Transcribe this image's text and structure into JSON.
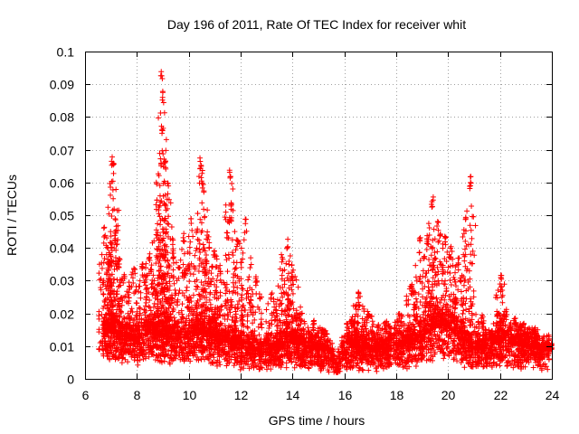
{
  "chart_data": {
    "type": "scatter",
    "title": "Day 196 of 2011, Rate Of TEC Index for receiver whit",
    "xlabel": "GPS time / hours",
    "ylabel": "ROTI / TECUs",
    "xlim": [
      6,
      24
    ],
    "ylim": [
      0,
      0.1
    ],
    "xticks": [
      "6",
      "8",
      "10",
      "12",
      "14",
      "16",
      "18",
      "20",
      "22",
      "24"
    ],
    "yticks": [
      "0",
      "0.01",
      "0.02",
      "0.03",
      "0.04",
      "0.05",
      "0.06",
      "0.07",
      "0.08",
      "0.09",
      "0.1"
    ],
    "grid": true,
    "marker": "+",
    "color": "#ff0000",
    "series": [
      {
        "name": "ROTI",
        "base_trend": [
          [
            6.7,
            0.013
          ],
          [
            7.0,
            0.015
          ],
          [
            7.5,
            0.013
          ],
          [
            8.0,
            0.012
          ],
          [
            8.5,
            0.014
          ],
          [
            9.0,
            0.013
          ],
          [
            9.5,
            0.012
          ],
          [
            10.0,
            0.013
          ],
          [
            10.5,
            0.014
          ],
          [
            11.0,
            0.012
          ],
          [
            11.5,
            0.011
          ],
          [
            12.0,
            0.01
          ],
          [
            12.5,
            0.009
          ],
          [
            13.0,
            0.009
          ],
          [
            13.5,
            0.01
          ],
          [
            14.0,
            0.011
          ],
          [
            14.5,
            0.01
          ],
          [
            15.0,
            0.009
          ],
          [
            15.5,
            0.008
          ],
          [
            15.7,
            0.004
          ],
          [
            15.9,
            0.009
          ],
          [
            16.5,
            0.01
          ],
          [
            17.0,
            0.009
          ],
          [
            17.5,
            0.008
          ],
          [
            18.0,
            0.01
          ],
          [
            18.5,
            0.011
          ],
          [
            19.0,
            0.013
          ],
          [
            19.5,
            0.016
          ],
          [
            20.0,
            0.016
          ],
          [
            20.5,
            0.012
          ],
          [
            21.0,
            0.009
          ],
          [
            21.5,
            0.01
          ],
          [
            22.0,
            0.012
          ],
          [
            22.5,
            0.011
          ],
          [
            23.0,
            0.01
          ],
          [
            23.5,
            0.009
          ],
          [
            23.9,
            0.009
          ]
        ],
        "peaks": [
          [
            6.75,
            0.047
          ],
          [
            6.9,
            0.037
          ],
          [
            7.05,
            0.069
          ],
          [
            7.1,
            0.066
          ],
          [
            7.15,
            0.046
          ],
          [
            7.5,
            0.033
          ],
          [
            7.9,
            0.035
          ],
          [
            8.2,
            0.038
          ],
          [
            8.5,
            0.04
          ],
          [
            8.75,
            0.055
          ],
          [
            8.95,
            0.094
          ],
          [
            9.0,
            0.089
          ],
          [
            8.97,
            0.078
          ],
          [
            9.1,
            0.068
          ],
          [
            9.2,
            0.06
          ],
          [
            9.4,
            0.04
          ],
          [
            9.8,
            0.045
          ],
          [
            10.1,
            0.049
          ],
          [
            10.45,
            0.068
          ],
          [
            10.5,
            0.065
          ],
          [
            10.7,
            0.046
          ],
          [
            11.0,
            0.04
          ],
          [
            11.2,
            0.035
          ],
          [
            11.6,
            0.065
          ],
          [
            11.65,
            0.055
          ],
          [
            11.9,
            0.045
          ],
          [
            12.2,
            0.049
          ],
          [
            12.6,
            0.032
          ],
          [
            13.2,
            0.028
          ],
          [
            13.6,
            0.038
          ],
          [
            13.8,
            0.043
          ],
          [
            14.0,
            0.035
          ],
          [
            14.3,
            0.022
          ],
          [
            14.8,
            0.018
          ],
          [
            15.2,
            0.017
          ],
          [
            16.3,
            0.02
          ],
          [
            16.55,
            0.027
          ],
          [
            16.9,
            0.022
          ],
          [
            17.3,
            0.017
          ],
          [
            17.6,
            0.018
          ],
          [
            18.1,
            0.021
          ],
          [
            18.6,
            0.03
          ],
          [
            18.9,
            0.044
          ],
          [
            19.2,
            0.045
          ],
          [
            19.4,
            0.056
          ],
          [
            19.6,
            0.049
          ],
          [
            19.9,
            0.044
          ],
          [
            20.1,
            0.041
          ],
          [
            20.4,
            0.037
          ],
          [
            20.7,
            0.052
          ],
          [
            20.85,
            0.062
          ],
          [
            21.3,
            0.02
          ],
          [
            21.9,
            0.02
          ],
          [
            22.05,
            0.033
          ],
          [
            22.6,
            0.019
          ],
          [
            22.9,
            0.017
          ],
          [
            23.3,
            0.017
          ],
          [
            23.9,
            0.011
          ]
        ]
      }
    ]
  }
}
